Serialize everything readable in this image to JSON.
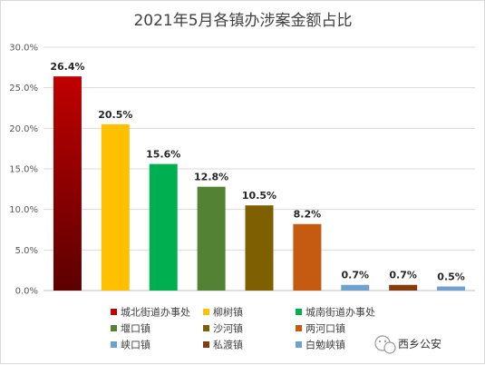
{
  "chart_data": {
    "type": "bar",
    "title": "2021年5月各镇办涉案金额占比",
    "categories": [
      "城北街道办事处",
      "柳树镇",
      "城南街道办事处",
      "堰口镇",
      "沙河镇",
      "两河口镇",
      "峡口镇",
      "私渡镇",
      "白勉峡镇"
    ],
    "values": [
      26.4,
      20.5,
      15.6,
      12.8,
      10.5,
      8.2,
      0.7,
      0.7,
      0.5
    ],
    "data_labels": [
      "26.4%",
      "20.5%",
      "15.6%",
      "12.8%",
      "10.5%",
      "8.2%",
      "0.7%",
      "0.7%",
      "0.5%"
    ],
    "colors": [
      "#c00000",
      "#ffc000",
      "#00b050",
      "#548235",
      "#7f6000",
      "#c55a11",
      "#6fa1cf",
      "#843c0c",
      "#6fa1cf"
    ],
    "yticks": [
      "0.0%",
      "5.0%",
      "10.0%",
      "15.0%",
      "20.0%",
      "25.0%",
      "30.0%"
    ],
    "ylim": [
      0,
      30
    ],
    "xlabel": "",
    "ylabel": "",
    "grid": true,
    "legend_position": "bottom"
  },
  "watermark": {
    "text": "西乡公安",
    "icon": "wechat-icon"
  }
}
